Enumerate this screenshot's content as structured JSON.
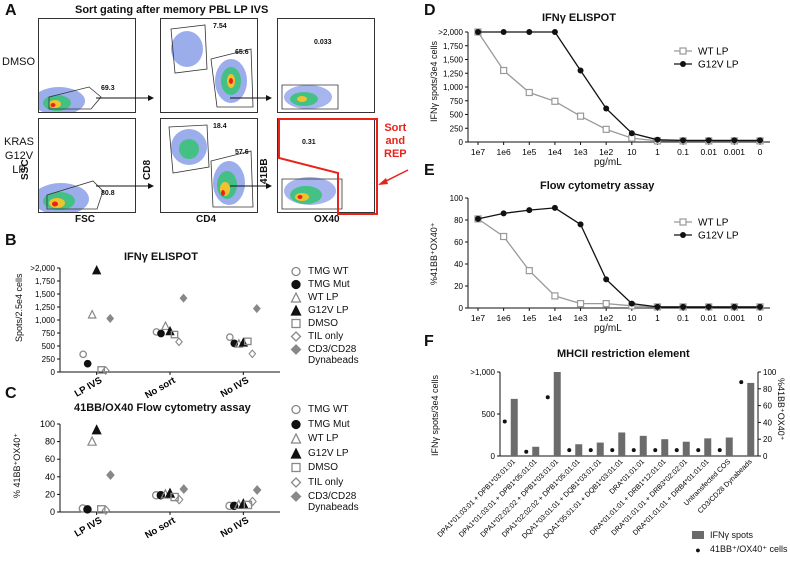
{
  "panelA": {
    "letter": "A",
    "title": "Sort gating after memory PBL LP IVS",
    "row_labels": [
      "DMSO",
      "KRAS\nG12V\nLP"
    ],
    "gates": {
      "dmso": [
        "69.3",
        "7.54",
        "65.6",
        "0.033"
      ],
      "kras": [
        "80.8",
        "18.4",
        "57.6",
        "0.31"
      ]
    },
    "axes": {
      "ssc": "SSC",
      "fsc": "FSC",
      "cd8": "CD8",
      "cd4": "CD4",
      "b41bb": "41BB",
      "ox40": "OX40"
    },
    "sort_label": "Sort\nand\nREP",
    "colors": {
      "gate_red": "#e8231a"
    }
  },
  "panelB": {
    "letter": "B",
    "title": "IFNγ ELISPOT",
    "ylabel": "Spots/2.5e4 cells",
    "yticks": [
      "0",
      "250",
      "500",
      "750",
      "1,000",
      "1,250",
      "1,500",
      "1,750",
      ">2,000"
    ],
    "groups": [
      "LP IVS",
      "No sort",
      "No IVS"
    ],
    "legend": [
      "TMG WT",
      "TMG Mut",
      "WT LP",
      "G12V LP",
      "DMSO",
      "TIL only",
      "CD3/CD28\nDynabeads"
    ]
  },
  "panelC": {
    "letter": "C",
    "title": "41BB/OX40 Flow cytometry assay",
    "ylabel": "% 41BB⁺OX40⁺",
    "yticks": [
      "0",
      "20",
      "40",
      "60",
      "80",
      "100"
    ],
    "groups": [
      "LP IVS",
      "No sort",
      "No IVS"
    ],
    "legend": [
      "TMG WT",
      "TMG Mut",
      "WT LP",
      "G12V LP",
      "DMSO",
      "TIL only",
      "CD3/CD28\nDynabeads"
    ]
  },
  "panelD": {
    "letter": "D",
    "title": "IFNγ ELISPOT",
    "ylabel": "IFNγ spots/3e4 cells",
    "yticks": [
      "0",
      "250",
      "500",
      "750",
      "1,000",
      "1,250",
      "1,500",
      "1,750",
      ">2,000"
    ],
    "xlabel": "pg/mL",
    "legend": [
      "WT LP",
      "G12V LP"
    ]
  },
  "panelE": {
    "letter": "E",
    "title": "Flow cytometry assay",
    "ylabel": "%41BB⁺OX40⁺",
    "yticks": [
      "0",
      "20",
      "40",
      "60",
      "80",
      "100"
    ],
    "xlabel": "pg/mL",
    "legend": [
      "WT LP",
      "G12V LP"
    ]
  },
  "panelF": {
    "letter": "F",
    "title": "MHCII restriction element",
    "ylabel_left": "IFNγ spots/3e4 cells",
    "ylabel_right": "%41BB⁺OX40⁺",
    "yticks_left": [
      "0",
      "500",
      ">1,000"
    ],
    "yticks_right": [
      "0",
      "20",
      "40",
      "60",
      "80",
      "100"
    ],
    "legend": [
      "IFNγ spots",
      "41BB⁺/OX40⁺ cells"
    ]
  },
  "chart_data": [
    {
      "id": "B",
      "type": "scatter",
      "title": "IFNγ ELISPOT",
      "ylabel": "Spots/2.5e4 cells",
      "ylim": [
        0,
        2000
      ],
      "categories": [
        "LP IVS",
        "No sort",
        "No IVS"
      ],
      "series": [
        {
          "name": "TMG WT",
          "values": [
            340,
            770,
            670
          ]
        },
        {
          "name": "TMG Mut",
          "values": [
            160,
            740,
            550
          ]
        },
        {
          "name": "WT LP",
          "values": [
            1100,
            880,
            540
          ]
        },
        {
          "name": "G12V LP",
          "values": [
            1950,
            780,
            560
          ]
        },
        {
          "name": "DMSO",
          "values": [
            40,
            720,
            590
          ]
        },
        {
          "name": "TIL only",
          "values": [
            30,
            580,
            350
          ]
        },
        {
          "name": "CD3/CD28 Dynabeads",
          "values": [
            1030,
            1420,
            1220
          ]
        }
      ]
    },
    {
      "id": "C",
      "type": "scatter",
      "title": "41BB/OX40 Flow cytometry assay",
      "ylabel": "% 41BB+OX40+",
      "ylim": [
        0,
        100
      ],
      "categories": [
        "LP IVS",
        "No sort",
        "No IVS"
      ],
      "series": [
        {
          "name": "TMG WT",
          "values": [
            4,
            19,
            7
          ]
        },
        {
          "name": "TMG Mut",
          "values": [
            3,
            19,
            7
          ]
        },
        {
          "name": "WT LP",
          "values": [
            80,
            20,
            8
          ]
        },
        {
          "name": "G12V LP",
          "values": [
            93,
            21,
            9
          ]
        },
        {
          "name": "DMSO",
          "values": [
            3,
            17,
            8
          ]
        },
        {
          "name": "TIL only",
          "values": [
            2,
            14,
            12
          ]
        },
        {
          "name": "CD3/CD28 Dynabeads",
          "values": [
            42,
            26,
            25
          ]
        }
      ]
    },
    {
      "id": "D",
      "type": "line",
      "title": "IFNγ ELISPOT",
      "ylabel": "IFNγ spots/3e4 cells",
      "xlabel": "pg/mL",
      "ylim": [
        0,
        2000
      ],
      "x": [
        "1e7",
        "1e6",
        "1e5",
        "1e4",
        "1e3",
        "1e2",
        "10",
        "1",
        "0.1",
        "0.01",
        "0.001",
        "0"
      ],
      "series": [
        {
          "name": "WT LP",
          "values": [
            2000,
            1300,
            900,
            740,
            470,
            230,
            70,
            20,
            20,
            20,
            20,
            20
          ]
        },
        {
          "name": "G12V LP",
          "values": [
            2000,
            2000,
            2000,
            2000,
            1300,
            610,
            160,
            40,
            30,
            30,
            30,
            30
          ]
        }
      ]
    },
    {
      "id": "E",
      "type": "line",
      "title": "Flow cytometry assay",
      "ylabel": "%41BB+OX40+",
      "xlabel": "pg/mL",
      "ylim": [
        0,
        100
      ],
      "x": [
        "1e7",
        "1e6",
        "1e5",
        "1e4",
        "1e3",
        "1e2",
        "10",
        "1",
        "0.1",
        "0.01",
        "0.001",
        "0"
      ],
      "series": [
        {
          "name": "WT LP",
          "values": [
            81,
            65,
            34,
            11,
            4,
            4,
            2,
            1,
            1,
            1,
            1,
            1
          ]
        },
        {
          "name": "G12V LP",
          "values": [
            81,
            86,
            89,
            91,
            76,
            26,
            4,
            1,
            1,
            1,
            1,
            1
          ]
        }
      ]
    },
    {
      "id": "F",
      "type": "bar",
      "title": "MHCII restriction element",
      "ylabel": "IFNγ spots/3e4 cells",
      "y2label": "%41BB+OX40+",
      "ylim": [
        0,
        1000
      ],
      "y2lim": [
        0,
        100
      ],
      "categories": [
        "DPA1*01:03:01 + DPB1*03:01:01",
        "DPA1*01:03:01 + DPB1*05:01:01",
        "DPA1*02:02:02 + DPB1*03:01:01",
        "DPA1*02:02:02 + DPB1*05:01:01",
        "DQA1*03:01:01 + DQB1*03:01:01",
        "DQA1*05:01:01 + DQB1*03:01:01",
        "DRA*01:01:01",
        "DRA*01:01:01 + DRB1*12:01:01",
        "DRA*01:01:01 + DRB3*02:02:01",
        "DRA*01:01:01 + DRB4*01:01:01",
        "Untransfected COS",
        "CD3/CD28 Dynabeads"
      ],
      "series": [
        {
          "name": "IFNγ spots",
          "values": [
            680,
            110,
            1000,
            140,
            160,
            280,
            240,
            200,
            170,
            210,
            220,
            870
          ]
        },
        {
          "name": "41BB+/OX40+ cells",
          "values": [
            41,
            5,
            70,
            7,
            7,
            7,
            7,
            7,
            7,
            7,
            7,
            88
          ]
        }
      ]
    }
  ]
}
